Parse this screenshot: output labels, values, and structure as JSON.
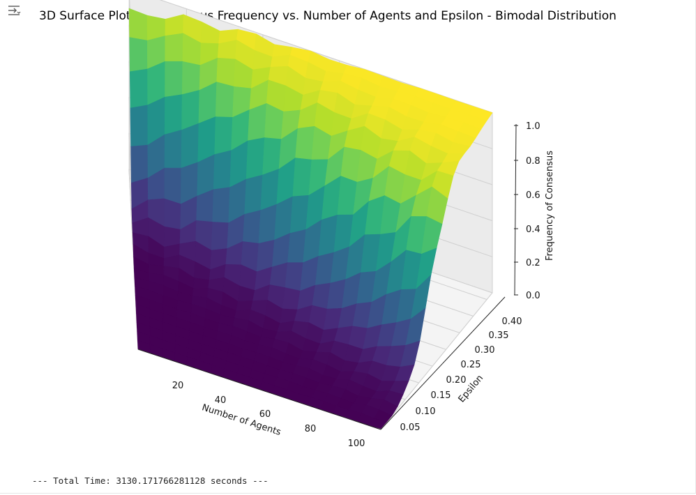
{
  "toolbar": {
    "output_icon": "collapse-output-icon"
  },
  "console": {
    "line": "--- Total Time: 3130.171766281128 seconds ---"
  },
  "chart_data": {
    "type": "surface3d",
    "title": "3D Surface Plot of Consensus Frequency vs. Number of Agents and Epsilon - Bimodal Distribution",
    "xlabel": "Number of Agents",
    "ylabel": "Epsilon",
    "zlabel": "Frequency of Consensus",
    "xlim": [
      5,
      100
    ],
    "ylim": [
      0.01,
      0.42
    ],
    "zlim": [
      0,
      1
    ],
    "x_ticks": [
      20,
      40,
      60,
      80,
      100
    ],
    "y_ticks": [
      "0.05",
      "0.10",
      "0.15",
      "0.20",
      "0.25",
      "0.30",
      "0.35",
      "0.40"
    ],
    "z_ticks": [
      "0.0",
      "0.2",
      "0.4",
      "0.6",
      "0.8",
      "1.0"
    ],
    "colormap": "viridis",
    "grid": true,
    "epsilon_transition_center": {
      "N5": 0.36,
      "N100": 0.19
    },
    "description_of_surface": "Frequency is ~0 for small epsilon, rises steeply through a transition band, reaching ~1.0 for large epsilon; the transition occurs at lower epsilon for larger numbers of agents."
  }
}
